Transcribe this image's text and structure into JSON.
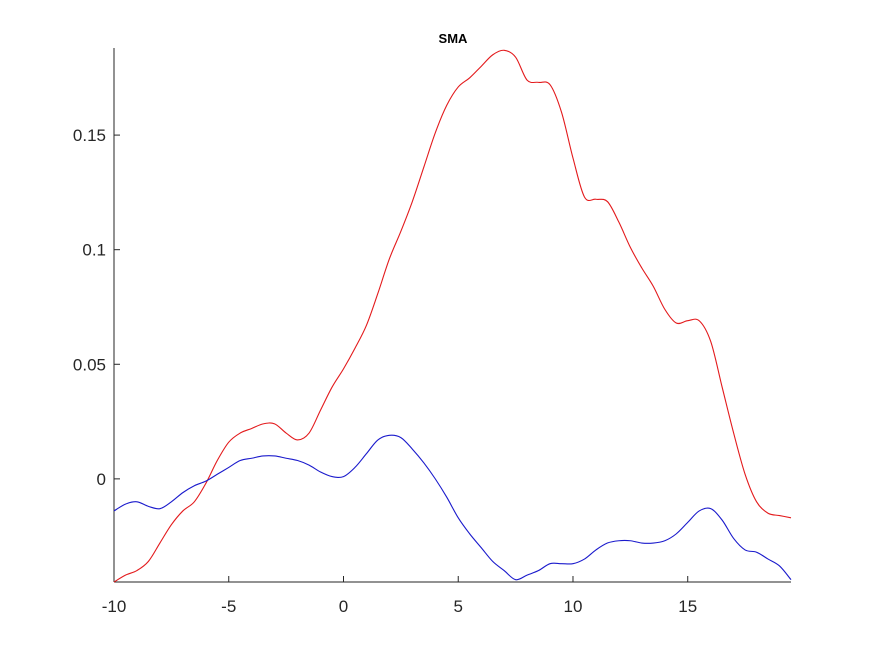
{
  "chart_data": {
    "type": "line",
    "title": "SMA",
    "xlabel": "",
    "ylabel": "",
    "xlim": [
      -10,
      19.5
    ],
    "ylim": [
      -0.045,
      0.188
    ],
    "x_ticks": [
      -10,
      -5,
      0,
      5,
      10,
      15
    ],
    "x_tick_labels": [
      "-10",
      "-5",
      "0",
      "5",
      "10",
      "15"
    ],
    "y_ticks": [
      0,
      0.05,
      0.1,
      0.15
    ],
    "y_tick_labels": [
      "0",
      "0.05",
      "0.1",
      "0.15"
    ],
    "grid": false,
    "legend": "none",
    "series": [
      {
        "color": "#e31a1c",
        "x": [
          -10,
          -9.5,
          -9,
          -8.5,
          -8,
          -7.5,
          -7,
          -6.5,
          -6,
          -5.5,
          -5,
          -4.5,
          -4,
          -3.5,
          -3,
          -2.5,
          -2,
          -1.5,
          -1,
          -0.5,
          0,
          0.5,
          1,
          1.5,
          2,
          2.5,
          3,
          3.5,
          4,
          4.5,
          5,
          5.5,
          6,
          6.5,
          7,
          7.5,
          8,
          8.5,
          9,
          9.5,
          10,
          10.5,
          11,
          11.5,
          12,
          12.5,
          13,
          13.5,
          14,
          14.5,
          15,
          15.5,
          16,
          16.5,
          17,
          17.5,
          18,
          18.5,
          19,
          19.5
        ],
        "y": [
          -0.045,
          -0.042,
          -0.04,
          -0.036,
          -0.028,
          -0.02,
          -0.014,
          -0.01,
          -0.002,
          0.008,
          0.016,
          0.02,
          0.022,
          0.024,
          0.024,
          0.02,
          0.017,
          0.02,
          0.03,
          0.04,
          0.048,
          0.057,
          0.067,
          0.081,
          0.096,
          0.108,
          0.121,
          0.136,
          0.151,
          0.163,
          0.171,
          0.175,
          0.18,
          0.185,
          0.187,
          0.184,
          0.174,
          0.173,
          0.172,
          0.16,
          0.14,
          0.123,
          0.122,
          0.121,
          0.112,
          0.101,
          0.092,
          0.084,
          0.074,
          0.068,
          0.069,
          0.069,
          0.06,
          0.04,
          0.02,
          0.002,
          -0.01,
          -0.015,
          -0.016,
          -0.017
        ]
      },
      {
        "color": "#1a1acc",
        "x": [
          -10,
          -9.5,
          -9,
          -8.5,
          -8,
          -7.5,
          -7,
          -6.5,
          -6,
          -5.5,
          -5,
          -4.5,
          -4,
          -3.5,
          -3,
          -2.5,
          -2,
          -1.5,
          -1,
          -0.5,
          0,
          0.5,
          1,
          1.5,
          2,
          2.5,
          3,
          3.5,
          4,
          4.5,
          5,
          5.5,
          6,
          6.5,
          7,
          7.5,
          8,
          8.5,
          9,
          9.5,
          10,
          10.5,
          11,
          11.5,
          12,
          12.5,
          13,
          13.5,
          14,
          14.5,
          15,
          15.5,
          16,
          16.5,
          17,
          17.5,
          18,
          18.5,
          19,
          19.5
        ],
        "y": [
          -0.014,
          -0.011,
          -0.01,
          -0.012,
          -0.013,
          -0.01,
          -0.006,
          -0.003,
          -0.001,
          0.002,
          0.005,
          0.008,
          0.009,
          0.01,
          0.01,
          0.009,
          0.008,
          0.006,
          0.003,
          0.001,
          0.001,
          0.005,
          0.011,
          0.017,
          0.019,
          0.018,
          0.013,
          0.007,
          0.0,
          -0.008,
          -0.017,
          -0.024,
          -0.03,
          -0.036,
          -0.04,
          -0.044,
          -0.042,
          -0.04,
          -0.037,
          -0.037,
          -0.037,
          -0.035,
          -0.031,
          -0.028,
          -0.027,
          -0.027,
          -0.028,
          -0.028,
          -0.027,
          -0.024,
          -0.019,
          -0.014,
          -0.013,
          -0.018,
          -0.026,
          -0.031,
          -0.032,
          -0.035,
          -0.038,
          -0.044
        ]
      }
    ]
  }
}
